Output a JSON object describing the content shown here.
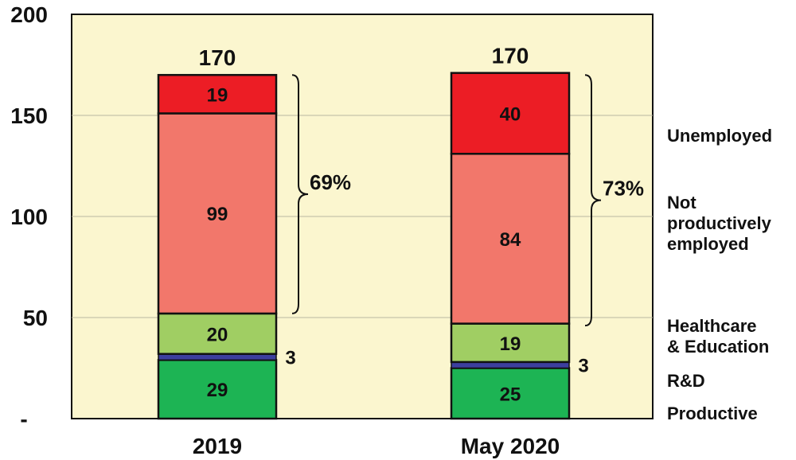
{
  "chart_data": {
    "type": "bar",
    "stacked": true,
    "categories": [
      "2019",
      "May 2020"
    ],
    "ylim": [
      0,
      200
    ],
    "y_ticks": [
      {
        "value": 0,
        "label": "-"
      },
      {
        "value": 50,
        "label": "50"
      },
      {
        "value": 100,
        "label": "100"
      },
      {
        "value": 150,
        "label": "150"
      },
      {
        "value": 200,
        "label": "200"
      }
    ],
    "grid": true,
    "plot_background": "#fbf6cf",
    "series": [
      {
        "name": "Productive",
        "color": "#1db454",
        "values": [
          29,
          25
        ],
        "labels": [
          "29",
          "25"
        ]
      },
      {
        "name": "R&D",
        "color": "#3c3f9e",
        "values": [
          3,
          3
        ],
        "labels": [
          "3",
          "3"
        ]
      },
      {
        "name": "Healthcare & Education",
        "color": "#a0ce63",
        "values": [
          20,
          19
        ],
        "labels": [
          "20",
          "19"
        ]
      },
      {
        "name": "Not productively employed",
        "color": "#f2776b",
        "values": [
          99,
          84
        ],
        "labels": [
          "99",
          "84"
        ]
      },
      {
        "name": "Unemployed",
        "color": "#ec1d25",
        "values": [
          19,
          40
        ],
        "labels": [
          "19",
          "40"
        ]
      }
    ],
    "totals": [
      "170",
      "170"
    ],
    "bracket_annotations": [
      {
        "category": "2019",
        "from": 52,
        "to": 170,
        "label": "69%"
      },
      {
        "category": "May 2020",
        "from": 46,
        "to": 170,
        "label": "73%"
      }
    ],
    "legend_labels": [
      {
        "series": "Unemployed",
        "lines": [
          "Unemployed"
        ]
      },
      {
        "series": "Not productively employed",
        "lines": [
          "Not",
          "productively",
          "employed"
        ]
      },
      {
        "series": "Healthcare & Education",
        "lines": [
          "Healthcare",
          "& Education"
        ]
      },
      {
        "series": "R&D",
        "lines": [
          "R&D"
        ]
      },
      {
        "series": "Productive",
        "lines": [
          "Productive"
        ]
      }
    ]
  }
}
